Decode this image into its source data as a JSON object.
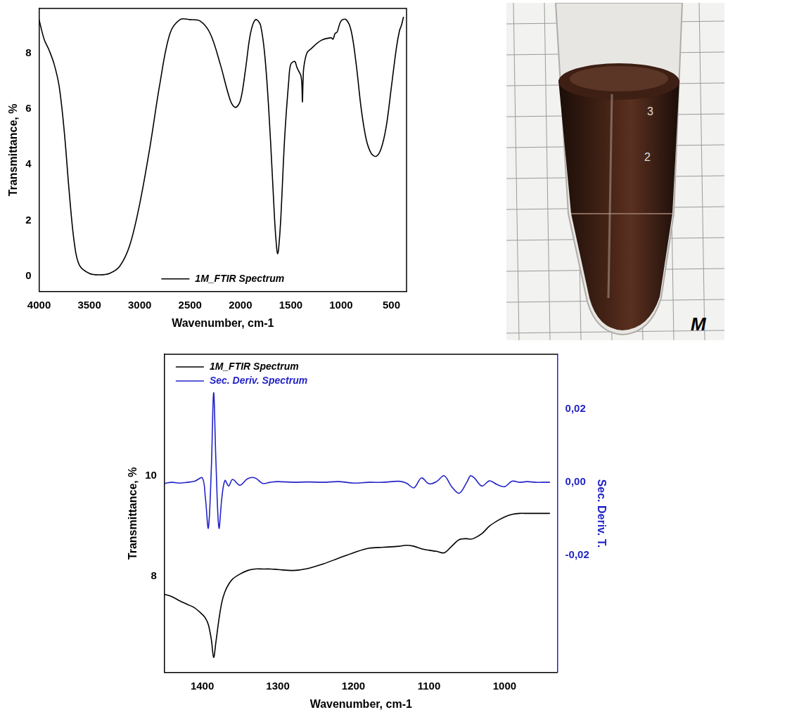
{
  "chart_data": [
    {
      "type": "line",
      "x_label": "Wavenumber, cm-1",
      "y_label": "Transmittance, %",
      "x": [
        4000,
        3950,
        3900,
        3850,
        3800,
        3750,
        3700,
        3650,
        3600,
        3500,
        3400,
        3300,
        3200,
        3100,
        3000,
        2900,
        2800,
        2700,
        2600,
        2500,
        2400,
        2300,
        2200,
        2100,
        2050,
        2000,
        1950,
        1900,
        1850,
        1800,
        1750,
        1700,
        1660,
        1640,
        1630,
        1620,
        1600,
        1560,
        1520,
        1500,
        1460,
        1440,
        1420,
        1400,
        1390,
        1384,
        1378,
        1370,
        1340,
        1300,
        1200,
        1100,
        1080,
        1060,
        1040,
        1000,
        950,
        900,
        850,
        800,
        750,
        700,
        650,
        600,
        550,
        500,
        450,
        420,
        400,
        380
      ],
      "series": [
        {
          "name": "1M_FTIR Spectrum",
          "color": "#000000",
          "values": [
            9.2,
            8.5,
            8.1,
            7.6,
            6.8,
            5.2,
            3.0,
            1.2,
            0.4,
            0.1,
            0.05,
            0.1,
            0.35,
            1.1,
            2.6,
            4.6,
            6.9,
            8.7,
            9.2,
            9.2,
            9.15,
            8.7,
            7.6,
            6.3,
            6.05,
            6.3,
            7.4,
            8.7,
            9.2,
            9.0,
            7.6,
            4.8,
            2.0,
            1.0,
            0.8,
            1.0,
            2.0,
            5.0,
            7.0,
            7.6,
            7.7,
            7.5,
            7.35,
            7.2,
            6.9,
            6.25,
            7.0,
            7.5,
            8.0,
            8.15,
            8.45,
            8.55,
            8.5,
            8.7,
            8.75,
            9.15,
            9.2,
            8.8,
            7.6,
            6.0,
            4.9,
            4.4,
            4.3,
            4.6,
            5.4,
            6.8,
            8.2,
            8.8,
            9.0,
            9.3
          ]
        }
      ],
      "xlim": [
        4000,
        350
      ],
      "xticks": [
        4000,
        3500,
        3000,
        2500,
        2000,
        1500,
        1000,
        500
      ],
      "ylim": [
        -0.55,
        9.6
      ],
      "yticks": [
        0,
        2,
        4,
        6,
        8
      ],
      "grid": false,
      "legend": "lower center"
    },
    {
      "type": "line",
      "x_label": "Wavenumber, cm-1",
      "y_label": "Transmittance, %",
      "y2_label": "Sec. Deriv. T.",
      "x": [
        1450,
        1440,
        1430,
        1420,
        1410,
        1400,
        1396,
        1392,
        1388,
        1385,
        1382,
        1378,
        1374,
        1370,
        1365,
        1360,
        1350,
        1340,
        1330,
        1320,
        1310,
        1300,
        1280,
        1260,
        1240,
        1220,
        1200,
        1180,
        1160,
        1140,
        1130,
        1120,
        1110,
        1100,
        1090,
        1080,
        1070,
        1060,
        1050,
        1045,
        1040,
        1030,
        1020,
        1010,
        1000,
        990,
        980,
        970,
        960,
        950,
        940
      ],
      "series": [
        {
          "name": "1M_FTIR Spectrum",
          "color": "#000000",
          "values": [
            7.65,
            7.6,
            7.52,
            7.45,
            7.38,
            7.25,
            7.18,
            7.05,
            6.75,
            6.4,
            6.7,
            7.15,
            7.5,
            7.7,
            7.85,
            7.95,
            8.05,
            8.12,
            8.15,
            8.15,
            8.15,
            8.14,
            8.12,
            8.16,
            8.25,
            8.36,
            8.47,
            8.56,
            8.58,
            8.6,
            8.62,
            8.6,
            8.55,
            8.52,
            8.5,
            8.47,
            8.6,
            8.73,
            8.75,
            8.74,
            8.76,
            8.85,
            9.0,
            9.1,
            9.18,
            9.23,
            9.25,
            9.25,
            9.25,
            9.25,
            9.25
          ]
        },
        {
          "name": "Sec. Deriv. Spectrum",
          "color": "#2323c8",
          "axis": "y2",
          "values": [
            -0.0003,
            0.0,
            -0.0002,
            0.0,
            0.0003,
            0.0012,
            -0.004,
            -0.0125,
            0.004,
            0.0245,
            0.006,
            -0.0125,
            -0.004,
            0.0005,
            -0.001,
            0.0008,
            -0.0008,
            0.001,
            0.0012,
            -0.0003,
            0.0,
            0.0002,
            0.0,
            0.0001,
            0.0,
            0.0002,
            -0.0002,
            0.0,
            0.0,
            0.0003,
            -0.0002,
            -0.0015,
            0.0012,
            -0.0004,
            0.0002,
            0.0018,
            -0.0012,
            -0.003,
            0.0,
            0.0018,
            0.0012,
            -0.001,
            0.0004,
            -0.0006,
            -0.0012,
            0.0003,
            0.0,
            0.0002,
            0.0,
            0.0,
            0.0
          ]
        }
      ],
      "xlim": [
        1450,
        930
      ],
      "xticks": [
        1400,
        1300,
        1200,
        1100,
        1000
      ],
      "ylim": [
        6.1,
        12.4
      ],
      "yticks": [
        8,
        10
      ],
      "y2lim": [
        -0.052,
        0.035
      ],
      "y2ticks": [
        {
          "value": 0.02,
          "label": "0,02"
        },
        {
          "value": 0,
          "label": "0,00"
        },
        {
          "value": -0.02,
          "label": "-0,02"
        }
      ],
      "grid": false,
      "legend": "upper left"
    }
  ],
  "photo": {
    "marks": [
      "3",
      "2"
    ],
    "label": "M"
  }
}
